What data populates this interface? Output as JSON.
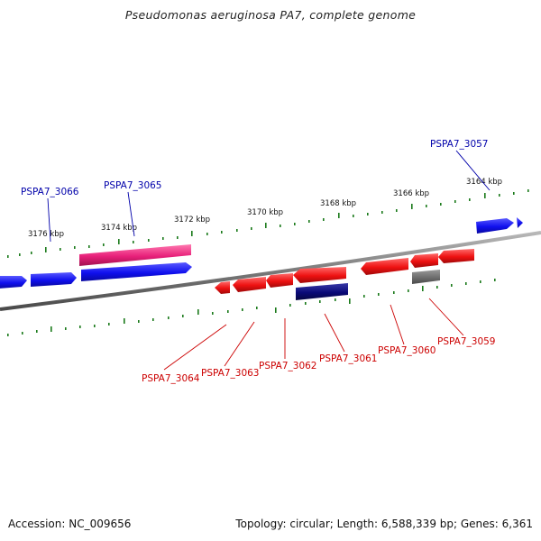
{
  "title": "Pseudomonas aeruginosa PA7, complete genome",
  "footer": {
    "accession": "Accession: NC_009656",
    "summary": "Topology: circular; Length: 6,588,339 bp; Genes: 6,361"
  },
  "colors": {
    "forward_gene": "#1010ee",
    "reverse_gene": "#ee1111",
    "highlight_forward": "#e8207a",
    "highlight_reverse": "#0a0a78",
    "gray_feature": "#6e6e6e",
    "backbone": "#7a7a7a",
    "tick": "#1a7a1a",
    "forward_label": "#0000aa",
    "reverse_label": "#cc0000"
  },
  "axis": {
    "tick_labels": [
      "3176 kbp",
      "3174 kbp",
      "3172 kbp",
      "3170 kbp",
      "3168 kbp",
      "3166 kbp",
      "3164 kbp"
    ]
  },
  "genes": {
    "forward_labels": [
      "PSPA7_3066",
      "PSPA7_3065",
      "PSPA7_3057"
    ],
    "reverse_labels": [
      "PSPA7_3064",
      "PSPA7_3063",
      "PSPA7_3062",
      "PSPA7_3061",
      "PSPA7_3060",
      "PSPA7_3059"
    ]
  }
}
